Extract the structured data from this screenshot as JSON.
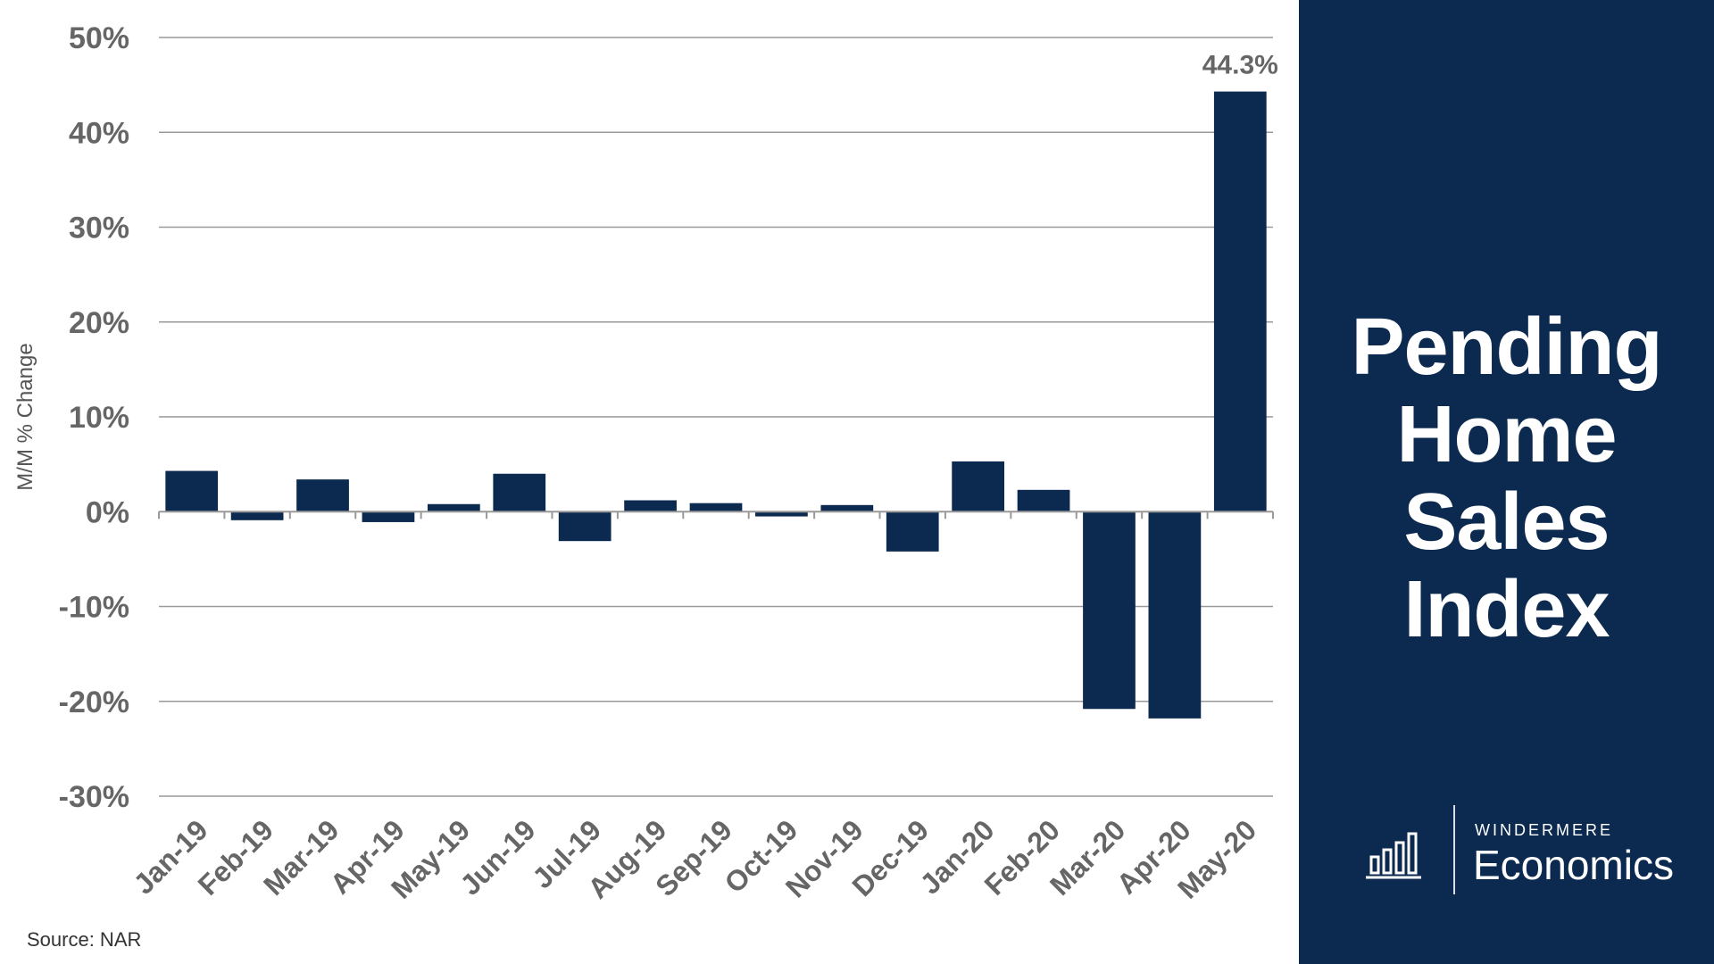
{
  "title_lines": [
    "Pending",
    "Home",
    "Sales",
    "Index"
  ],
  "source": "Source: NAR",
  "logo": {
    "brand": "WINDERMERE",
    "sub": "Economics",
    "icon": "bar-chart-icon"
  },
  "colors": {
    "bar": "#0c2a50",
    "panel": "#0c2a50",
    "axis_text": "#666666",
    "grid": "#999999"
  },
  "chart_data": {
    "type": "bar",
    "title": "",
    "xlabel": "",
    "ylabel": "M/M % Change",
    "ylim": [
      -30,
      50
    ],
    "yticks": [
      50,
      40,
      30,
      20,
      10,
      0,
      -10,
      -20,
      -30
    ],
    "ytick_labels": [
      "50%",
      "40%",
      "30%",
      "20%",
      "10%",
      "0%",
      "-10%",
      "-20%",
      "-30%"
    ],
    "grid": true,
    "categories": [
      "Jan-19",
      "Feb-19",
      "Mar-19",
      "Apr-19",
      "May-19",
      "Jun-19",
      "Jul-19",
      "Aug-19",
      "Sep-19",
      "Oct-19",
      "Nov-19",
      "Dec-19",
      "Jan-20",
      "Feb-20",
      "Mar-20",
      "Apr-20",
      "May-20"
    ],
    "values": [
      4.3,
      -0.9,
      3.4,
      -1.1,
      0.8,
      4.0,
      -3.1,
      1.2,
      0.9,
      -0.5,
      0.7,
      -4.2,
      5.3,
      2.3,
      -20.8,
      -21.8,
      44.3
    ],
    "data_labels": [
      {
        "index": 16,
        "text": "44.3%"
      }
    ]
  }
}
